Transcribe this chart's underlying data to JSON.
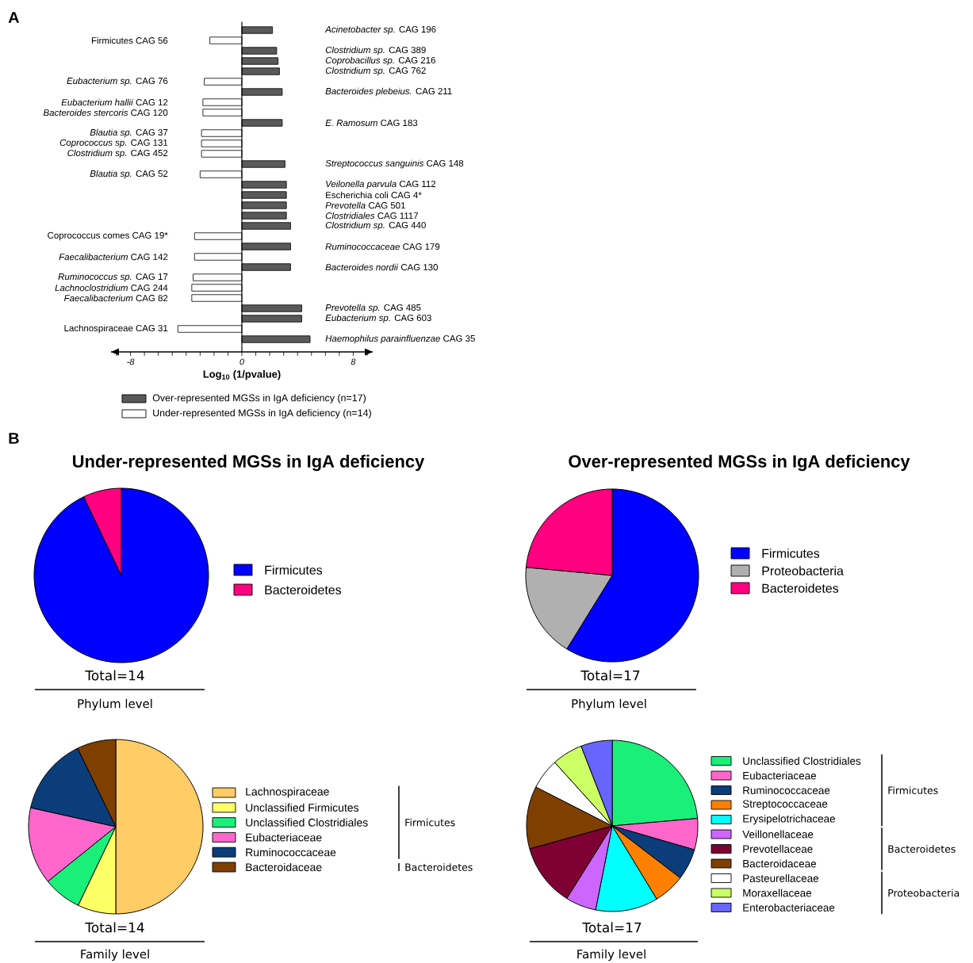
{
  "chart_data": [
    {
      "type": "bar",
      "orientation": "horizontal",
      "xlabel": "Log$_{10}$ (1/pvalue)",
      "legend": "bottom",
      "annotations": [
        "A"
      ],
      "categories": [
        "*Acinetobacter sp.* CAG 196",
        "Firmicutes CAG 56",
        "*Clostridium sp.* CAG 389",
        "*Coprobacillus sp.* CAG 216",
        "*Clostridium sp.* CAG 762",
        "*Eubacterium sp.* CAG 76",
        "*Bacteroides plebeius.* CAG 211",
        "*Eubacterium hallii* CAG 12",
        "*Bacteroides stercoris* CAG 120",
        "*E. Ramosum* CAG 183",
        "*Blautia sp.* CAG 37",
        "*Coprococcus sp.* CAG 131",
        "*Clostridium sp.* CAG 452",
        "*Streptococcus sanguinis* CAG 148",
        "*Blautia sp.* CAG 52",
        "*Veilonella parvula* CAG 112",
        "Escherichia coli CAG 4*",
        "*Prevotella* CAG 501",
        "*Clostridiales* CAG 1117",
        "*Clostridium sp.* CAG 440",
        "Coprococcus comes CAG 19*",
        "*Ruminococcaceae* CAG 179",
        "*Faecalibacterium* CAG 142",
        "*Bacteroides nordii* CAG 130",
        "*Ruminococcus sp.* CAG 17",
        "*Lachnoclostridium* CAG 244",
        "*Faecalibacterium* CAG 82",
        "*Prevotella sp.* CAG 485",
        "*Eubacterium sp.* CAG 603",
        "Lachnospiraceae CAG 31",
        "*Haemophilus parainfluenzae* CAG 35"
      ],
      "series": [
        {
          "name": "Over-represented MGSs in IgA deficiency (n=17)",
          "color": "#595959",
          "values": [
            2.2,
            null,
            2.5,
            2.6,
            2.7,
            null,
            2.9,
            null,
            null,
            2.9,
            null,
            null,
            null,
            3.1,
            null,
            3.2,
            3.2,
            3.2,
            3.2,
            3.5,
            null,
            3.5,
            null,
            3.5,
            null,
            null,
            null,
            4.3,
            4.3,
            null,
            4.9
          ]
        },
        {
          "name": "Under-represented MGSs in IgA deficiency (n=14)",
          "color": "#ffffff",
          "values": [
            null,
            -2.3,
            null,
            null,
            null,
            -2.7,
            null,
            -2.8,
            -2.8,
            null,
            -2.9,
            -2.9,
            -2.9,
            null,
            -3.0,
            null,
            null,
            null,
            null,
            null,
            -3.4,
            null,
            -3.4,
            null,
            -3.5,
            -3.6,
            -3.6,
            null,
            null,
            -4.6,
            null
          ]
        }
      ],
      "xlim": [
        -9.4,
        9.4
      ],
      "xticks": [
        {
          "value": -9,
          "label": null
        },
        -8,
        {
          "value": -7,
          "label": null
        },
        {
          "value": -6,
          "label": null
        },
        {
          "value": -5,
          "label": null
        },
        {
          "value": -4,
          "label": null
        },
        {
          "value": -3,
          "label": null
        },
        {
          "value": -2,
          "label": null
        },
        {
          "value": -1,
          "label": null
        },
        0,
        {
          "value": 1,
          "label": null
        },
        {
          "value": 2,
          "label": null
        },
        {
          "value": 3,
          "label": null
        },
        {
          "value": 4,
          "label": null
        },
        {
          "value": 5,
          "label": null
        },
        {
          "value": 6,
          "label": null
        },
        {
          "value": 7,
          "label": null
        },
        8,
        {
          "value": 9,
          "label": null
        }
      ]
    },
    {
      "type": "pie",
      "title": "Under-represented MGSs in IgA deficiency",
      "legend": "right",
      "annotations": [
        "B",
        "Total=14",
        "Phylum level"
      ],
      "categories": [
        "Firmicutes",
        "Bacteroidetes"
      ],
      "values": [
        92.9,
        7.1
      ],
      "colors": [
        "#0000ff",
        "#ff0080"
      ]
    },
    {
      "type": "pie",
      "title": "Over-represented MGSs in IgA deficiency",
      "legend": "right",
      "annotations": [
        "Total=17",
        "Phylum level"
      ],
      "categories": [
        "Firmicutes",
        "Proteobacteria",
        "Bacteroidetes"
      ],
      "values": [
        58.8,
        17.7,
        23.5
      ],
      "colors": [
        "#0000ff",
        "#b0b0b0",
        "#ff0080"
      ]
    },
    {
      "type": "pie",
      "legend": "right",
      "annotations": [
        "Total=14",
        "Family level",
        "Firmicutes",
        "Bacteroidetes"
      ],
      "categories": [
        "Lachnospiraceae",
        "Unclassified Firmicutes",
        "Unclassified Clostridiales",
        "Eubacteriaceae",
        "Ruminococcaceae",
        "Bacteroidaceae"
      ],
      "values": [
        50,
        7.1,
        7.1,
        14.3,
        14.3,
        7.2
      ],
      "colors": [
        "#ffcc66",
        "#ffff66",
        "#1aef7a",
        "#ff66cc",
        "#0a3d7a",
        "#7f3f00"
      ]
    },
    {
      "type": "pie",
      "legend": "right",
      "annotations": [
        "Total=17",
        "Family level",
        "Firmicutes",
        "Bacteroidetes",
        "Proteobacteria"
      ],
      "categories": [
        "Unclassified Clostridiales",
        "Eubacteriaceae",
        "Ruminococcaceae",
        "Streptococcaceae",
        "Erysipelotrichaceae",
        "Veillonellaceae",
        "Prevotellaceae",
        "Bacteroidaceae",
        "Pasteurellaceae",
        "Moraxellaceae",
        "Enterobacteriaceae"
      ],
      "values": [
        23.6,
        5.9,
        5.9,
        5.9,
        11.8,
        5.8,
        11.8,
        11.8,
        5.8,
        5.8,
        5.9
      ],
      "colors": [
        "#1aef7a",
        "#ff66cc",
        "#0a3d7a",
        "#ff8000",
        "#00ffff",
        "#cc66ff",
        "#7f0033",
        "#7f3f00",
        "#ffffff",
        "#ccff66",
        "#6666ff"
      ]
    }
  ]
}
